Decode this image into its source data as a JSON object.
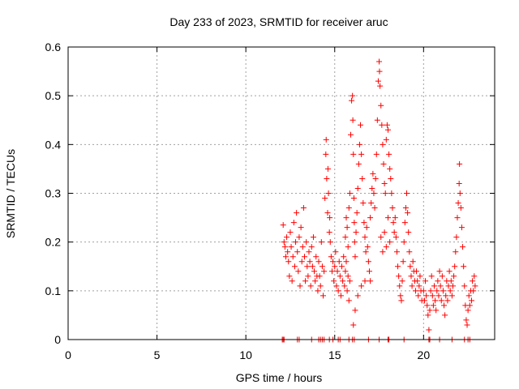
{
  "chart_data": {
    "type": "scatter",
    "title": "Day 233 of 2023, SRMTID for receiver aruc",
    "xlabel": "GPS time / hours",
    "ylabel": "SRMTID / TECUs",
    "xlim": [
      0,
      24
    ],
    "ylim": [
      0,
      0.6
    ],
    "x_ticks": [
      0,
      5,
      10,
      15,
      20
    ],
    "x_tick_labels": [
      "0",
      "5",
      "10",
      "15",
      "20"
    ],
    "y_ticks": [
      0,
      0.1,
      0.2,
      0.3,
      0.4,
      0.5,
      0.6
    ],
    "y_tick_labels": [
      "0",
      "0.1",
      "0.2",
      "0.3",
      "0.4",
      "0.5",
      "0.6"
    ],
    "grid": true,
    "marker": "plus",
    "color": "#ff0000",
    "series": [
      {
        "name": "SRMTID",
        "points": [
          [
            12.05,
            0.0
          ],
          [
            12.1,
            0.0
          ],
          [
            12.15,
            0.0
          ],
          [
            12.9,
            0.0
          ],
          [
            13.0,
            0.0
          ],
          [
            13.7,
            0.0
          ],
          [
            14.1,
            0.0
          ],
          [
            14.2,
            0.0
          ],
          [
            14.3,
            0.0
          ],
          [
            14.4,
            0.0
          ],
          [
            14.7,
            0.0
          ],
          [
            14.9,
            0.0
          ],
          [
            15.2,
            0.0
          ],
          [
            15.3,
            0.0
          ],
          [
            15.8,
            0.0
          ],
          [
            16.0,
            0.0
          ],
          [
            16.1,
            0.0
          ],
          [
            16.9,
            0.0
          ],
          [
            17.5,
            0.0
          ],
          [
            18.0,
            0.0
          ],
          [
            18.05,
            0.0
          ],
          [
            18.9,
            0.0
          ],
          [
            20.3,
            0.0
          ],
          [
            20.35,
            0.0
          ],
          [
            20.9,
            0.0
          ],
          [
            21.6,
            0.0
          ],
          [
            22.3,
            0.0
          ],
          [
            22.5,
            0.0
          ],
          [
            22.6,
            0.0
          ],
          [
            12.1,
            0.235
          ],
          [
            12.15,
            0.2
          ],
          [
            12.2,
            0.19
          ],
          [
            12.25,
            0.17
          ],
          [
            12.3,
            0.21
          ],
          [
            12.35,
            0.18
          ],
          [
            12.4,
            0.16
          ],
          [
            12.45,
            0.13
          ],
          [
            12.5,
            0.22
          ],
          [
            12.55,
            0.19
          ],
          [
            12.6,
            0.12
          ],
          [
            12.65,
            0.17
          ],
          [
            12.7,
            0.24
          ],
          [
            12.75,
            0.15
          ],
          [
            12.8,
            0.2
          ],
          [
            12.85,
            0.26
          ],
          [
            12.9,
            0.18
          ],
          [
            12.95,
            0.14
          ],
          [
            13.0,
            0.21
          ],
          [
            13.05,
            0.11
          ],
          [
            13.1,
            0.23
          ],
          [
            13.15,
            0.16
          ],
          [
            13.2,
            0.19
          ],
          [
            13.25,
            0.27
          ],
          [
            13.3,
            0.17
          ],
          [
            13.35,
            0.12
          ],
          [
            13.4,
            0.2
          ],
          [
            13.45,
            0.15
          ],
          [
            13.5,
            0.13
          ],
          [
            13.55,
            0.18
          ],
          [
            13.6,
            0.16
          ],
          [
            13.65,
            0.11
          ],
          [
            13.7,
            0.19
          ],
          [
            13.75,
            0.15
          ],
          [
            13.8,
            0.21
          ],
          [
            13.85,
            0.14
          ],
          [
            13.9,
            0.12
          ],
          [
            13.95,
            0.17
          ],
          [
            14.0,
            0.13
          ],
          [
            14.05,
            0.1
          ],
          [
            14.1,
            0.16
          ],
          [
            14.15,
            0.13
          ],
          [
            14.2,
            0.11
          ],
          [
            14.25,
            0.2
          ],
          [
            14.3,
            0.15
          ],
          [
            14.35,
            0.09
          ],
          [
            14.4,
            0.14
          ],
          [
            14.45,
            0.29
          ],
          [
            14.5,
            0.38
          ],
          [
            14.52,
            0.41
          ],
          [
            14.55,
            0.33
          ],
          [
            14.6,
            0.26
          ],
          [
            14.62,
            0.35
          ],
          [
            14.65,
            0.3
          ],
          [
            14.7,
            0.22
          ],
          [
            14.72,
            0.25
          ],
          [
            14.75,
            0.2
          ],
          [
            14.8,
            0.17
          ],
          [
            14.85,
            0.14
          ],
          [
            14.9,
            0.16
          ],
          [
            14.95,
            0.12
          ],
          [
            15.0,
            0.15
          ],
          [
            15.05,
            0.18
          ],
          [
            15.1,
            0.11
          ],
          [
            15.15,
            0.14
          ],
          [
            15.2,
            0.1
          ],
          [
            15.25,
            0.16
          ],
          [
            15.3,
            0.13
          ],
          [
            15.35,
            0.09
          ],
          [
            15.4,
            0.15
          ],
          [
            15.45,
            0.12
          ],
          [
            15.5,
            0.17
          ],
          [
            15.55,
            0.11
          ],
          [
            15.6,
            0.14
          ],
          [
            15.65,
            0.16
          ],
          [
            15.7,
            0.1
          ],
          [
            15.75,
            0.13
          ],
          [
            15.8,
            0.08
          ],
          [
            15.85,
            0.12
          ],
          [
            15.6,
            0.21
          ],
          [
            15.65,
            0.25
          ],
          [
            15.7,
            0.23
          ],
          [
            15.75,
            0.19
          ],
          [
            15.8,
            0.27
          ],
          [
            15.85,
            0.3
          ],
          [
            15.9,
            0.42
          ],
          [
            15.95,
            0.49
          ],
          [
            16.0,
            0.5
          ],
          [
            16.02,
            0.45
          ],
          [
            16.05,
            0.38
          ],
          [
            16.08,
            0.29
          ],
          [
            16.1,
            0.24
          ],
          [
            16.12,
            0.2
          ],
          [
            16.15,
            0.17
          ],
          [
            16.2,
            0.22
          ],
          [
            16.25,
            0.26
          ],
          [
            16.3,
            0.31
          ],
          [
            16.35,
            0.36
          ],
          [
            16.4,
            0.4
          ],
          [
            16.45,
            0.44
          ],
          [
            16.5,
            0.38
          ],
          [
            16.55,
            0.33
          ],
          [
            16.6,
            0.28
          ],
          [
            16.65,
            0.24
          ],
          [
            16.7,
            0.21
          ],
          [
            16.75,
            0.18
          ],
          [
            16.8,
            0.23
          ],
          [
            16.85,
            0.19
          ],
          [
            16.9,
            0.16
          ],
          [
            16.95,
            0.14
          ],
          [
            17.0,
            0.12
          ],
          [
            16.05,
            0.03
          ],
          [
            16.15,
            0.06
          ],
          [
            16.3,
            0.09
          ],
          [
            16.5,
            0.11
          ],
          [
            16.7,
            0.12
          ],
          [
            17.0,
            0.25
          ],
          [
            17.05,
            0.28
          ],
          [
            17.1,
            0.31
          ],
          [
            17.15,
            0.34
          ],
          [
            17.2,
            0.3
          ],
          [
            17.25,
            0.27
          ],
          [
            17.3,
            0.33
          ],
          [
            17.35,
            0.38
          ],
          [
            17.4,
            0.45
          ],
          [
            17.45,
            0.53
          ],
          [
            17.5,
            0.57
          ],
          [
            17.52,
            0.55
          ],
          [
            17.55,
            0.52
          ],
          [
            17.6,
            0.48
          ],
          [
            17.65,
            0.44
          ],
          [
            17.7,
            0.4
          ],
          [
            17.75,
            0.36
          ],
          [
            17.8,
            0.32
          ],
          [
            17.85,
            0.3
          ],
          [
            17.9,
            0.41
          ],
          [
            17.95,
            0.44
          ],
          [
            18.0,
            0.43
          ],
          [
            18.05,
            0.38
          ],
          [
            18.1,
            0.35
          ],
          [
            18.15,
            0.33
          ],
          [
            18.2,
            0.3
          ],
          [
            18.25,
            0.27
          ],
          [
            18.3,
            0.24
          ],
          [
            18.35,
            0.22
          ],
          [
            17.6,
            0.21
          ],
          [
            17.7,
            0.18
          ],
          [
            17.8,
            0.22
          ],
          [
            17.9,
            0.19
          ],
          [
            18.0,
            0.25
          ],
          [
            18.1,
            0.2
          ],
          [
            18.4,
            0.25
          ],
          [
            18.45,
            0.21
          ],
          [
            18.5,
            0.18
          ],
          [
            18.55,
            0.15
          ],
          [
            18.6,
            0.13
          ],
          [
            18.65,
            0.11
          ],
          [
            18.7,
            0.09
          ],
          [
            18.75,
            0.08
          ],
          [
            18.8,
            0.12
          ],
          [
            18.85,
            0.16
          ],
          [
            18.9,
            0.2
          ],
          [
            18.95,
            0.24
          ],
          [
            19.0,
            0.27
          ],
          [
            19.05,
            0.3
          ],
          [
            19.1,
            0.26
          ],
          [
            19.15,
            0.22
          ],
          [
            19.2,
            0.18
          ],
          [
            19.25,
            0.15
          ],
          [
            19.3,
            0.13
          ],
          [
            19.35,
            0.11
          ],
          [
            19.4,
            0.16
          ],
          [
            19.45,
            0.14
          ],
          [
            19.5,
            0.12
          ],
          [
            19.55,
            0.1
          ],
          [
            19.6,
            0.14
          ],
          [
            19.65,
            0.12
          ],
          [
            19.7,
            0.09
          ],
          [
            19.75,
            0.11
          ],
          [
            19.8,
            0.13
          ],
          [
            19.85,
            0.1
          ],
          [
            19.9,
            0.08
          ],
          [
            20.0,
            0.1
          ],
          [
            20.05,
            0.08
          ],
          [
            20.1,
            0.12
          ],
          [
            20.15,
            0.09
          ],
          [
            20.2,
            0.07
          ],
          [
            20.25,
            0.05
          ],
          [
            20.3,
            0.02
          ],
          [
            20.35,
            0.06
          ],
          [
            20.4,
            0.1
          ],
          [
            20.45,
            0.13
          ],
          [
            20.5,
            0.09
          ],
          [
            20.55,
            0.07
          ],
          [
            20.6,
            0.11
          ],
          [
            20.65,
            0.08
          ],
          [
            20.7,
            0.06
          ],
          [
            20.75,
            0.1
          ],
          [
            20.8,
            0.12
          ],
          [
            20.85,
            0.09
          ],
          [
            20.9,
            0.14
          ],
          [
            20.95,
            0.11
          ],
          [
            21.0,
            0.08
          ],
          [
            21.05,
            0.13
          ],
          [
            21.1,
            0.1
          ],
          [
            21.15,
            0.07
          ],
          [
            21.2,
            0.05
          ],
          [
            21.25,
            0.09
          ],
          [
            21.3,
            0.12
          ],
          [
            21.35,
            0.08
          ],
          [
            21.4,
            0.11
          ],
          [
            21.45,
            0.14
          ],
          [
            21.5,
            0.1
          ],
          [
            21.55,
            0.12
          ],
          [
            21.6,
            0.09
          ],
          [
            21.65,
            0.11
          ],
          [
            21.7,
            0.13
          ],
          [
            21.75,
            0.15
          ],
          [
            21.8,
            0.18
          ],
          [
            21.85,
            0.21
          ],
          [
            21.9,
            0.25
          ],
          [
            21.95,
            0.28
          ],
          [
            22.0,
            0.32
          ],
          [
            22.02,
            0.36
          ],
          [
            22.05,
            0.3
          ],
          [
            22.1,
            0.27
          ],
          [
            22.15,
            0.23
          ],
          [
            22.2,
            0.19
          ],
          [
            22.25,
            0.15
          ],
          [
            22.3,
            0.11
          ],
          [
            22.35,
            0.07
          ],
          [
            22.4,
            0.04
          ],
          [
            22.45,
            0.03
          ],
          [
            22.5,
            0.06
          ],
          [
            22.55,
            0.09
          ],
          [
            22.6,
            0.07
          ],
          [
            22.65,
            0.1
          ],
          [
            22.7,
            0.08
          ],
          [
            22.75,
            0.12
          ],
          [
            22.8,
            0.1
          ],
          [
            22.85,
            0.13
          ],
          [
            22.9,
            0.11
          ]
        ]
      }
    ]
  }
}
